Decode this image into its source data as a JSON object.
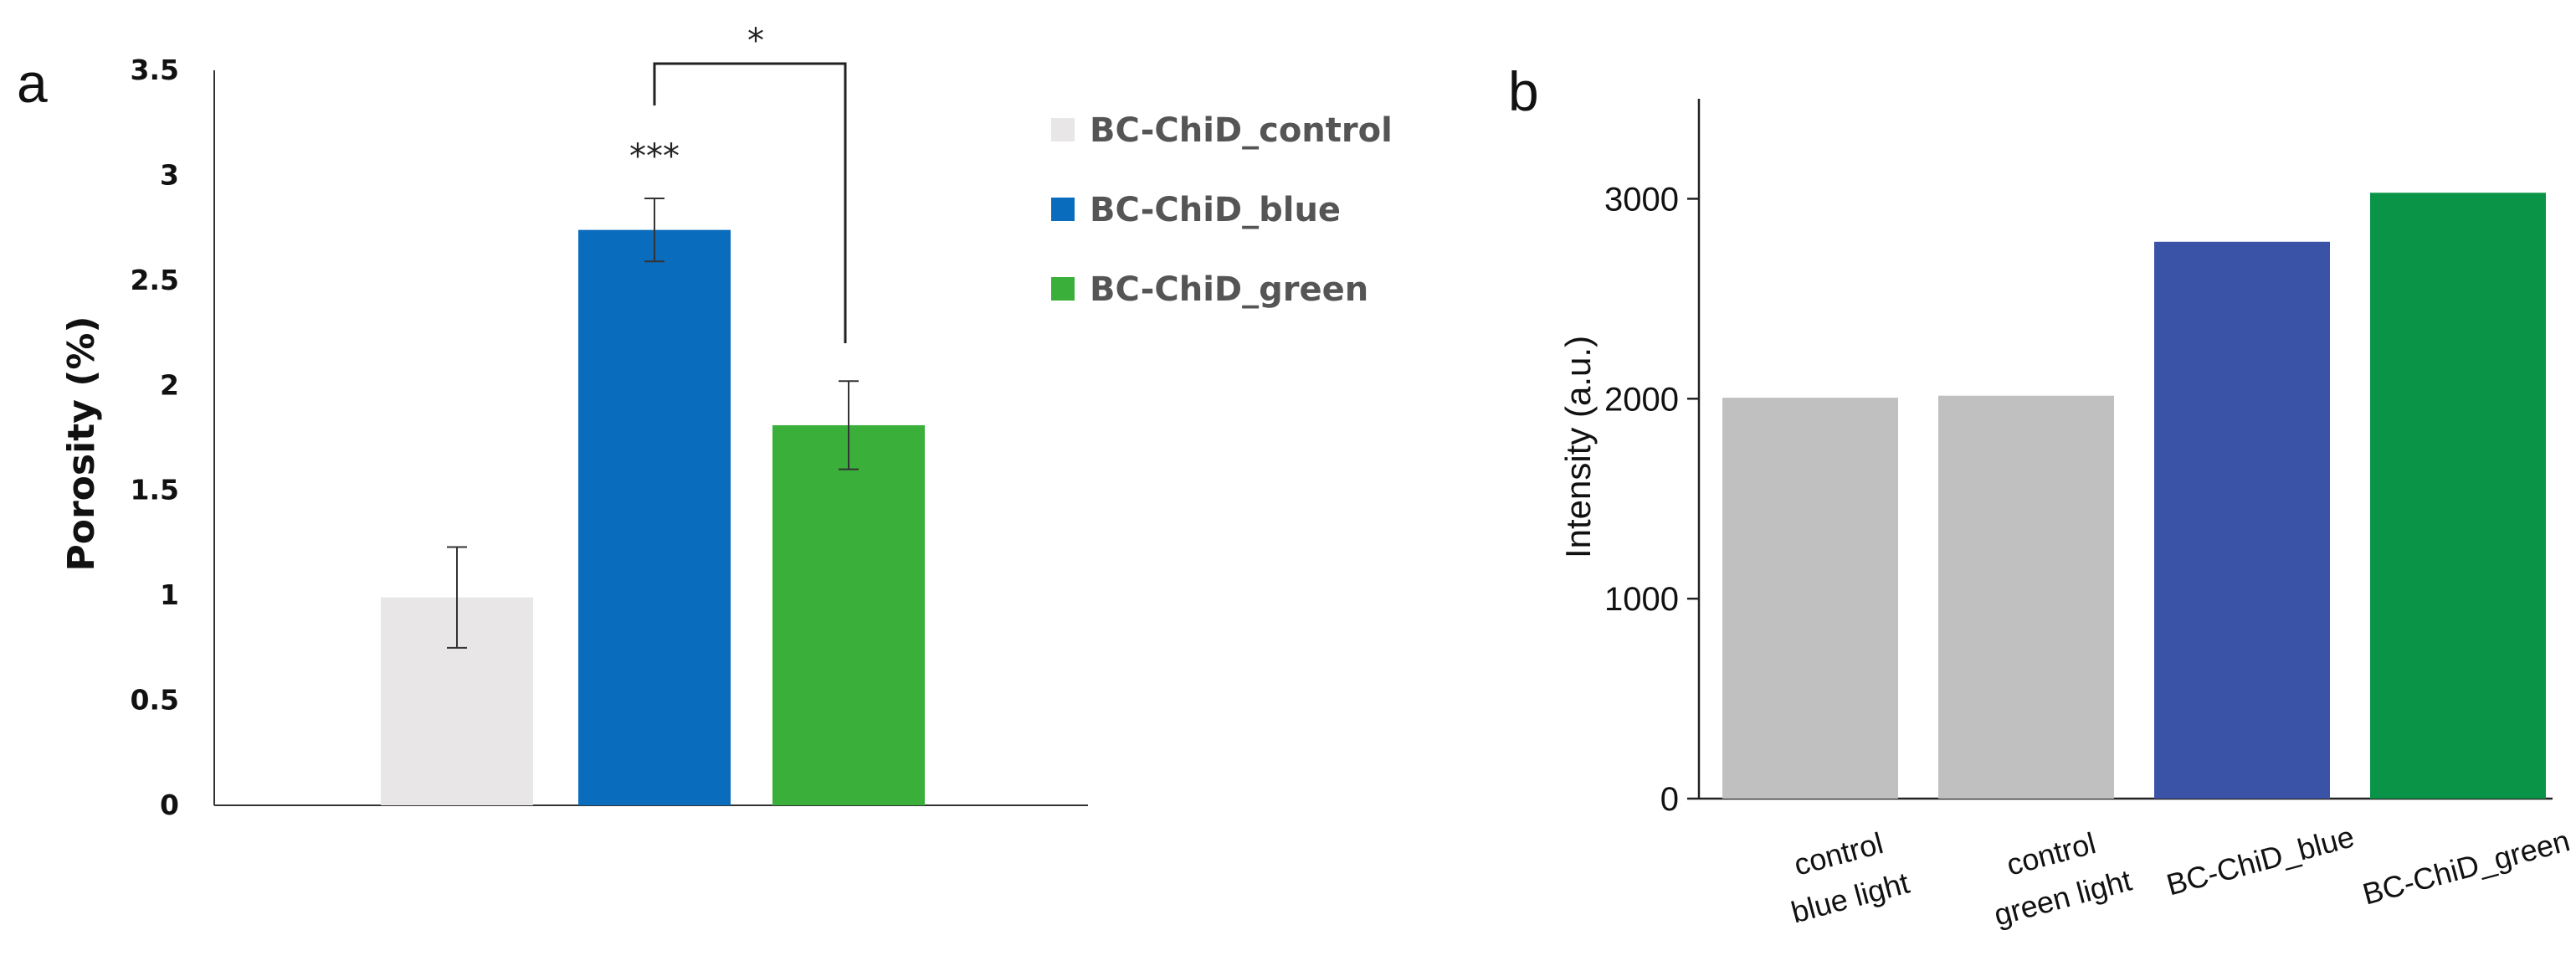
{
  "panels": {
    "a": {
      "letter": "a"
    },
    "b": {
      "letter": "b"
    }
  },
  "chart_data": [
    {
      "type": "bar",
      "panel": "a",
      "title": "",
      "xlabel": "",
      "ylabel": "Porosity  (%)",
      "ylim": [
        0,
        3.5
      ],
      "yticks": [
        0,
        0.5,
        1,
        1.5,
        2,
        2.5,
        3,
        3.5
      ],
      "ytick_labels": [
        "0",
        "0.5",
        "1",
        "1.5",
        "2",
        "2.5",
        "3",
        "3.5"
      ],
      "grid": false,
      "legend_position": "top-right",
      "categories": [
        "BC-ChiD_control",
        "BC-ChiD_blue",
        "BC-ChiD_green"
      ],
      "values": [
        0.99,
        2.74,
        1.81
      ],
      "errors": [
        0.24,
        0.15,
        0.21
      ],
      "colors": [
        "#e8e6e7",
        "#0a6cbd",
        "#3ab03b"
      ],
      "annotations": {
        "blue_label": "***",
        "bracket_label": "*"
      }
    },
    {
      "type": "bar",
      "panel": "b",
      "title": "",
      "xlabel": "",
      "ylabel": "Intensity (a.u.)",
      "ylim": [
        0,
        3500
      ],
      "yticks": [
        0,
        1000,
        2000,
        3000
      ],
      "ytick_labels": [
        "0",
        "1000",
        "2000",
        "3000"
      ],
      "grid": false,
      "categories": [
        [
          "control",
          "blue light"
        ],
        [
          "control",
          "green light"
        ],
        [
          "BC-ChiD_blue"
        ],
        [
          "BC-ChiD_green"
        ]
      ],
      "values": [
        2005,
        2015,
        2785,
        3030
      ],
      "colors": [
        "#c0c0c0",
        "#c0c0c0",
        "#3b53a6",
        "#0a9447"
      ]
    }
  ]
}
